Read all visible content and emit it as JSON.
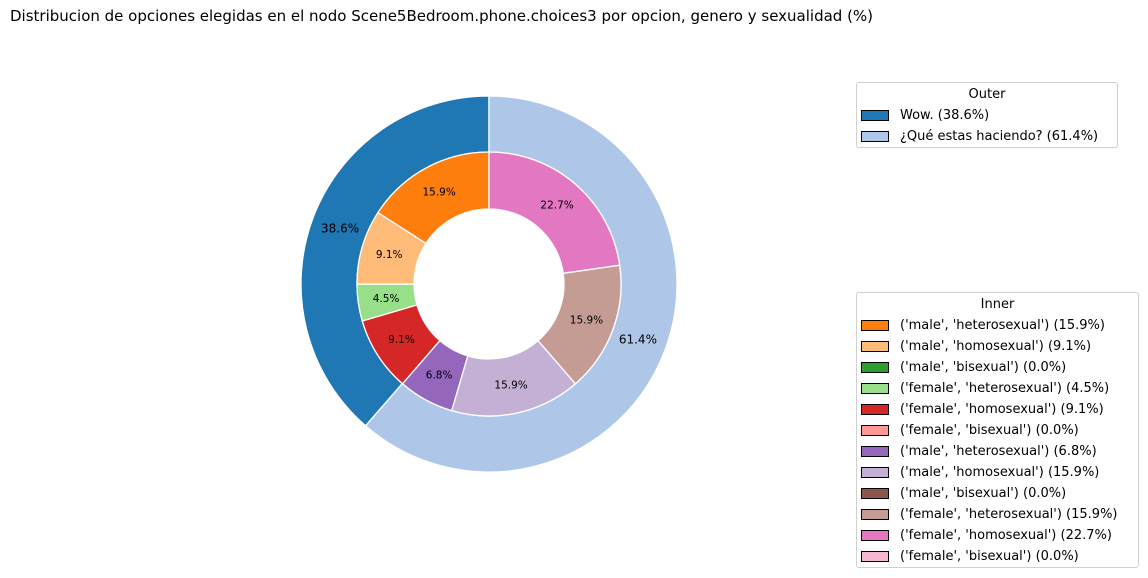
{
  "chart_data": {
    "type": "pie",
    "title": "Distribucion de opciones elegidas en el nodo Scene5Bedroom.phone.choices3 por opcion, genero y sexualidad (%)",
    "outer": {
      "legend_title": "Outer",
      "slices": [
        {
          "label": "Wow. (38.6%)",
          "value": 38.6,
          "pct_label": "38.6%",
          "color": "#1f77b4"
        },
        {
          "label": "¿Qué estas haciendo? (61.4%)",
          "value": 61.4,
          "pct_label": "61.4%",
          "color": "#aec7e8"
        }
      ]
    },
    "inner": {
      "legend_title": "Inner",
      "slices": [
        {
          "label": "('male', 'heterosexual') (15.9%)",
          "value": 15.9,
          "pct_label": "15.9%",
          "color": "#ff7f0e"
        },
        {
          "label": "('male', 'homosexual') (9.1%)",
          "value": 9.1,
          "pct_label": "9.1%",
          "color": "#ffbb78"
        },
        {
          "label": "('male', 'bisexual') (0.0%)",
          "value": 0.0,
          "pct_label": "",
          "color": "#2ca02c"
        },
        {
          "label": "('female', 'heterosexual') (4.5%)",
          "value": 4.5,
          "pct_label": "4.5%",
          "color": "#98df8a"
        },
        {
          "label": "('female', 'homosexual') (9.1%)",
          "value": 9.1,
          "pct_label": "9.1%",
          "color": "#d62728"
        },
        {
          "label": "('female', 'bisexual') (0.0%)",
          "value": 0.0,
          "pct_label": "",
          "color": "#ff9896"
        },
        {
          "label": "('male', 'heterosexual') (6.8%)",
          "value": 6.8,
          "pct_label": "6.8%",
          "color": "#9467bd"
        },
        {
          "label": "('male', 'homosexual') (15.9%)",
          "value": 15.9,
          "pct_label": "15.9%",
          "color": "#c5b0d5"
        },
        {
          "label": "('male', 'bisexual') (0.0%)",
          "value": 0.0,
          "pct_label": "",
          "color": "#8c564b"
        },
        {
          "label": "('female', 'heterosexual') (15.9%)",
          "value": 15.9,
          "pct_label": "15.9%",
          "color": "#c49c94"
        },
        {
          "label": "('female', 'homosexual') (22.7%)",
          "value": 22.7,
          "pct_label": "22.7%",
          "color": "#e377c2"
        },
        {
          "label": "('female', 'bisexual') (0.0%)",
          "value": 0.0,
          "pct_label": "",
          "color": "#f7b6d2"
        }
      ]
    },
    "start_angle_deg": 90,
    "direction": "counterclockwise",
    "legend_placement": "right"
  }
}
